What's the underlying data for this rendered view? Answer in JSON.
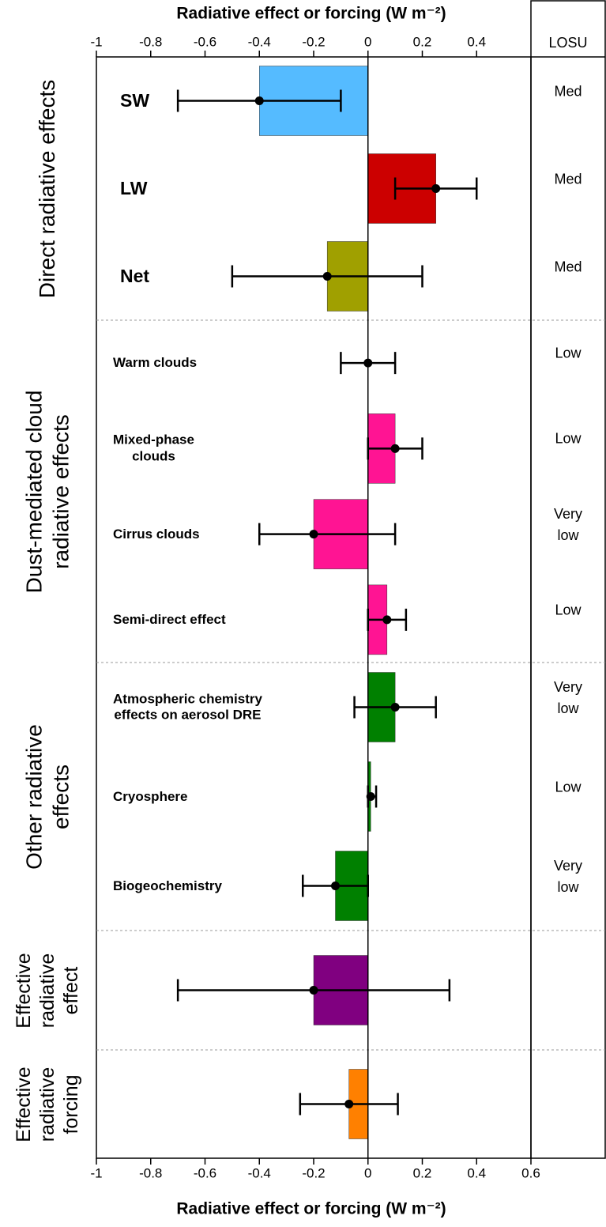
{
  "chart_data": {
    "type": "bar",
    "orientation": "horizontal",
    "x_title": "Radiative effect or forcing (W m⁻²)",
    "losu_title": "LOSU",
    "xlim": [
      -1,
      0.6
    ],
    "xticks": [
      -1,
      -0.8,
      -0.6,
      -0.4,
      -0.2,
      0,
      0.2,
      0.4,
      0.6
    ],
    "xticks_top": [
      -1,
      -0.8,
      -0.6,
      -0.4,
      -0.2,
      0,
      0.2,
      0.4
    ],
    "groups": [
      {
        "name": "Direct radiative effects",
        "categories": [
          "SW",
          "LW",
          "Net"
        ],
        "values": [
          -0.4,
          0.25,
          -0.15
        ],
        "lower": [
          -0.7,
          0.1,
          -0.5
        ],
        "upper": [
          -0.1,
          0.4,
          0.2
        ],
        "colors": [
          "#55bbff",
          "#cc0000",
          "#a0a000"
        ],
        "losu": [
          "Med",
          "Med",
          "Med"
        ]
      },
      {
        "name": "Dust-mediated cloud\nradiative effects",
        "categories": [
          "Warm clouds",
          "Mixed-phase\nclouds",
          "Cirrus clouds",
          "Semi-direct effect"
        ],
        "values": [
          0,
          0.1,
          -0.2,
          0.07
        ],
        "lower": [
          -0.1,
          0,
          -0.4,
          0
        ],
        "upper": [
          0.1,
          0.2,
          0.1,
          0.14
        ],
        "colors": [
          "#ff1493",
          "#ff1493",
          "#ff1493",
          "#ff1493"
        ],
        "losu": [
          "Low",
          "Low",
          "Very\nlow",
          "Low"
        ]
      },
      {
        "name": "Other radiative\neffects",
        "categories": [
          "Atmospheric chemistry\neffects on aerosol DRE",
          "Cryosphere",
          "Biogeochemistry"
        ],
        "values": [
          0.1,
          0.01,
          -0.12
        ],
        "lower": [
          -0.05,
          0,
          -0.24
        ],
        "upper": [
          0.25,
          0.03,
          0
        ],
        "colors": [
          "#008000",
          "#008000",
          "#008000"
        ],
        "losu": [
          "Very\nlow",
          "Low",
          "Very\nlow"
        ]
      },
      {
        "name": "Effective\nradiative\neffect",
        "categories": [
          null
        ],
        "values": [
          -0.2
        ],
        "lower": [
          -0.7
        ],
        "upper": [
          0.3
        ],
        "colors": [
          "#800080"
        ],
        "losu": [
          null
        ]
      },
      {
        "name": "Effective\nradiative\nforcing",
        "categories": [
          null
        ],
        "values": [
          -0.07
        ],
        "lower": [
          -0.25
        ],
        "upper": [
          0.11
        ],
        "colors": [
          "#ff8000"
        ],
        "losu": [
          null
        ]
      }
    ]
  }
}
